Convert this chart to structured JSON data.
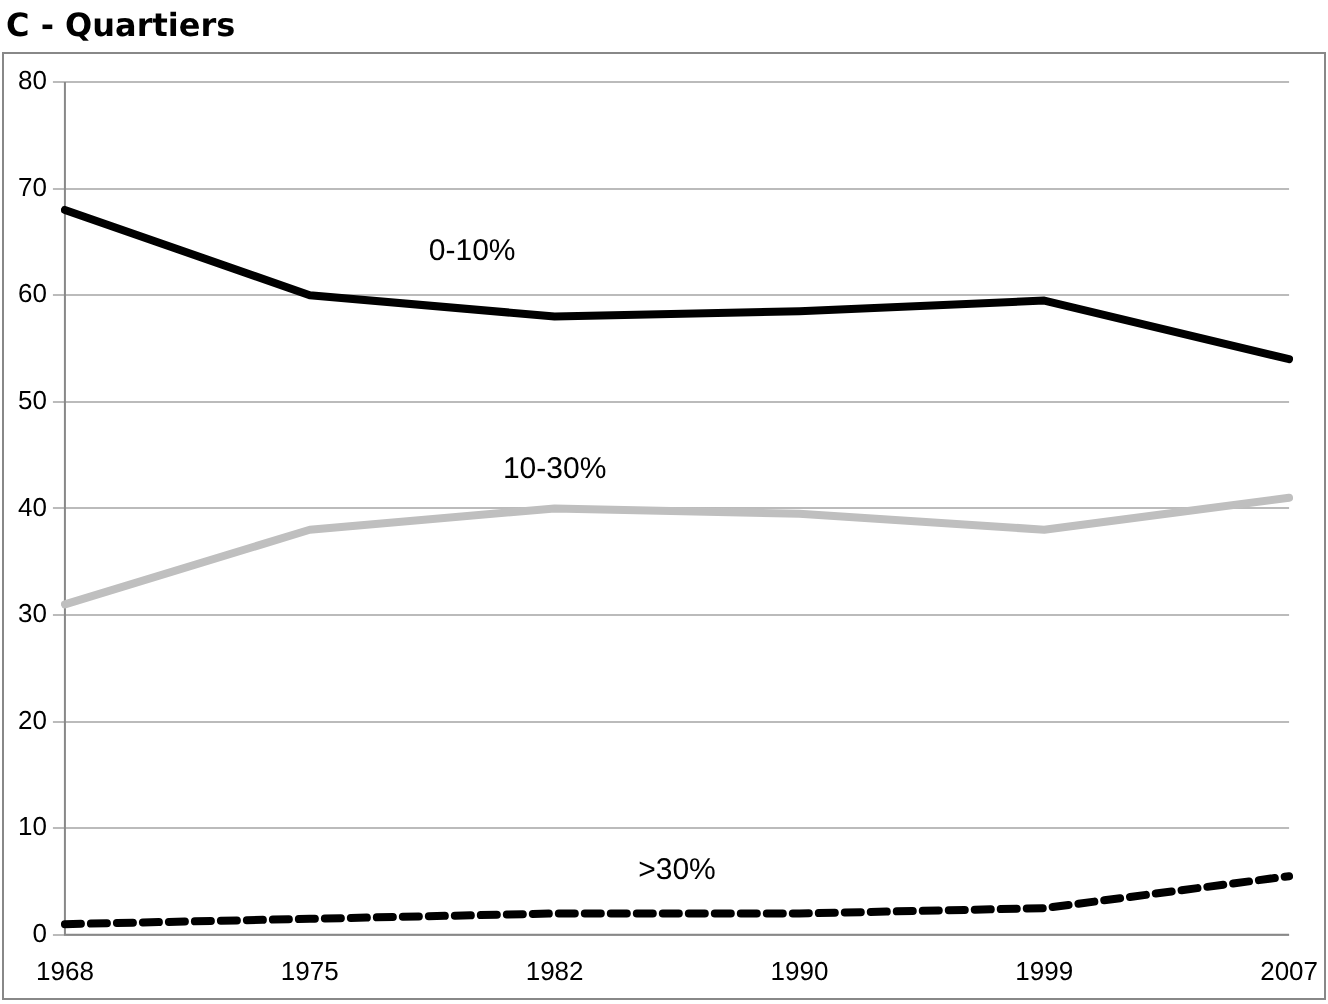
{
  "chart_data": {
    "type": "line",
    "title": "C - Quartiers",
    "categories": [
      "1968",
      "1975",
      "1982",
      "1990",
      "1999",
      "2007"
    ],
    "series": [
      {
        "name": "0-10%",
        "color": "#000000",
        "values": [
          68,
          60,
          58,
          58.5,
          59.5,
          54
        ]
      },
      {
        "name": "10-30%",
        "color": "#bfbfbf",
        "values": [
          31,
          38,
          40,
          39.5,
          38,
          41
        ]
      },
      {
        "name": ">30%",
        "color": "#000000",
        "values": [
          1,
          1.5,
          2,
          2,
          2.5,
          5.5
        ],
        "line_style": "dashed"
      }
    ],
    "ylim": [
      0,
      80
    ],
    "yticks": [
      0,
      10,
      20,
      30,
      40,
      50,
      60,
      70,
      80
    ],
    "grid": "y",
    "legend": false,
    "marker": "none"
  }
}
